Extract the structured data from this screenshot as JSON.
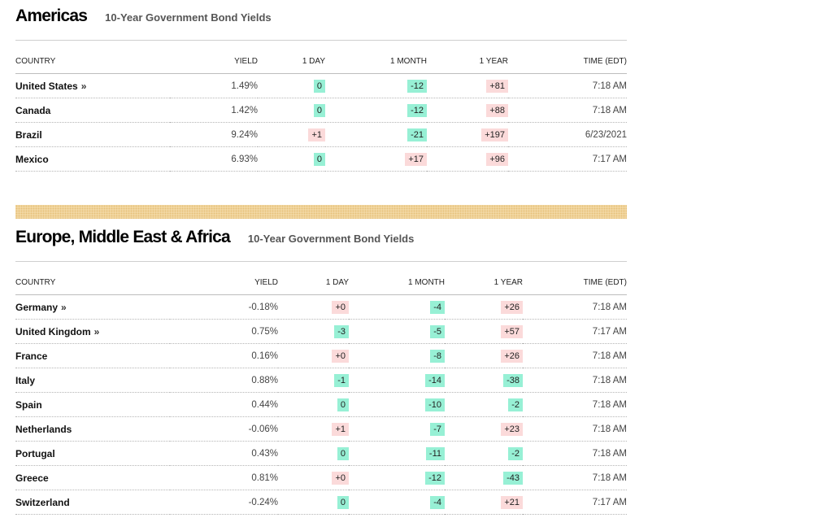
{
  "americas": {
    "title": "Americas",
    "subtitle": "10-Year Government Bond Yields",
    "columns": [
      "COUNTRY",
      "YIELD",
      "1 DAY",
      "1 MONTH",
      "1 YEAR",
      "TIME (EDT)"
    ],
    "rows": [
      {
        "country": "United States",
        "arrow": "»",
        "yield": "1.49%",
        "d1": "0",
        "m1": "-12",
        "y1": "+81",
        "time": "7:18 AM"
      },
      {
        "country": "Canada",
        "arrow": "",
        "yield": "1.42%",
        "d1": "0",
        "m1": "-12",
        "y1": "+88",
        "time": "7:18 AM"
      },
      {
        "country": "Brazil",
        "arrow": "",
        "yield": "9.24%",
        "d1": "+1",
        "m1": "-21",
        "y1": "+197",
        "time": "6/23/2021"
      },
      {
        "country": "Mexico",
        "arrow": "",
        "yield": "6.93%",
        "d1": "0",
        "m1": "+17",
        "y1": "+96",
        "time": "7:17 AM"
      }
    ]
  },
  "emea": {
    "title": "Europe, Middle East & Africa",
    "subtitle": "10-Year Government Bond Yields",
    "columns": [
      "COUNTRY",
      "YIELD",
      "1 DAY",
      "1 MONTH",
      "1 YEAR",
      "TIME (EDT)"
    ],
    "rows": [
      {
        "country": "Germany",
        "arrow": "»",
        "yield": "-0.18%",
        "d1": "+0",
        "m1": "-4",
        "y1": "+26",
        "time": "7:18 AM"
      },
      {
        "country": "United Kingdom",
        "arrow": "»",
        "yield": "0.75%",
        "d1": "-3",
        "m1": "-5",
        "y1": "+57",
        "time": "7:17 AM"
      },
      {
        "country": "France",
        "arrow": "",
        "yield": "0.16%",
        "d1": "+0",
        "m1": "-8",
        "y1": "+26",
        "time": "7:18 AM"
      },
      {
        "country": "Italy",
        "arrow": "",
        "yield": "0.88%",
        "d1": "-1",
        "m1": "-14",
        "y1": "-38",
        "time": "7:18 AM"
      },
      {
        "country": "Spain",
        "arrow": "",
        "yield": "0.44%",
        "d1": "0",
        "m1": "-10",
        "y1": "-2",
        "time": "7:18 AM"
      },
      {
        "country": "Netherlands",
        "arrow": "",
        "yield": "-0.06%",
        "d1": "+1",
        "m1": "-7",
        "y1": "+23",
        "time": "7:18 AM"
      },
      {
        "country": "Portugal",
        "arrow": "",
        "yield": "0.43%",
        "d1": "0",
        "m1": "-11",
        "y1": "-2",
        "time": "7:18 AM"
      },
      {
        "country": "Greece",
        "arrow": "",
        "yield": "0.81%",
        "d1": "+0",
        "m1": "-12",
        "y1": "-43",
        "time": "7:18 AM"
      },
      {
        "country": "Switzerland",
        "arrow": "",
        "yield": "-0.24%",
        "d1": "0",
        "m1": "-4",
        "y1": "+21",
        "time": "7:17 AM"
      }
    ]
  },
  "colors": {
    "positive_bg": "#fbdada",
    "negative_bg": "#97f0d5",
    "stripe": "#f4dcab"
  }
}
